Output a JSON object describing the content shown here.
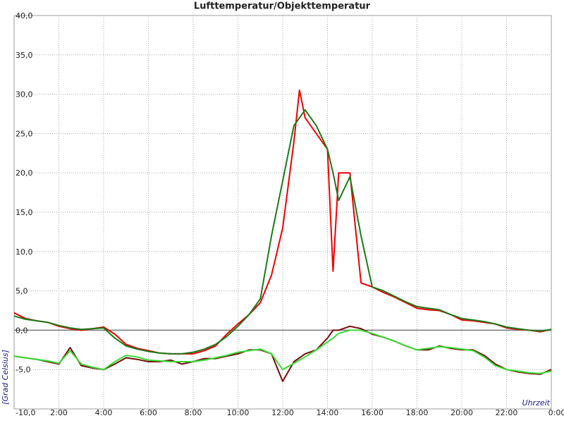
{
  "chart_data": {
    "type": "line",
    "title": "Lufttemperatur/Objekttemperatur",
    "ylabel": "[Grad Celsius]",
    "xlabel": "Uhrzeit",
    "x": [
      0,
      0.5,
      1,
      1.5,
      2,
      2.5,
      3,
      3.5,
      4,
      4.5,
      5,
      5.5,
      6,
      6.5,
      7,
      7.5,
      8,
      8.5,
      9,
      9.5,
      10,
      10.5,
      11,
      11.5,
      12,
      12.5,
      12.75,
      13,
      13.5,
      14,
      14.25,
      14.5,
      15,
      15.5,
      16,
      16.5,
      17,
      17.5,
      18,
      18.5,
      19,
      19.5,
      20,
      20.5,
      21,
      21.5,
      22,
      22.5,
      23,
      23.5,
      24
    ],
    "series": [
      {
        "color": "#ee0000",
        "values": [
          2.2,
          1.5,
          1.2,
          1.0,
          0.5,
          0.2,
          0.0,
          0.2,
          0.4,
          -0.5,
          -1.8,
          -2.3,
          -2.6,
          -2.9,
          -3.0,
          -3.0,
          -3.0,
          -2.6,
          -2.0,
          -0.5,
          0.8,
          2.0,
          3.5,
          7,
          13,
          24,
          30.5,
          27,
          25,
          23,
          7.5,
          20,
          20,
          6,
          5.5,
          4.8,
          4.2,
          3.5,
          2.8,
          2.6,
          2.5,
          2.0,
          1.3,
          1.2,
          1.0,
          0.8,
          0.3,
          0.1,
          0.0,
          -0.2,
          0.1
        ]
      },
      {
        "color": "#1a7a1a",
        "values": [
          1.8,
          1.4,
          1.2,
          1.0,
          0.6,
          0.3,
          0.1,
          0.2,
          0.3,
          -1.0,
          -2.0,
          -2.4,
          -2.7,
          -2.9,
          -3.0,
          -3.0,
          -2.8,
          -2.4,
          -1.8,
          -0.8,
          0.5,
          2.0,
          4.0,
          12,
          19,
          26,
          27,
          28,
          26,
          23,
          20,
          16.5,
          19.5,
          12,
          5.5,
          5,
          4.3,
          3.6,
          3.0,
          2.8,
          2.6,
          2.0,
          1.5,
          1.3,
          1.1,
          0.8,
          0.4,
          0.2,
          0.0,
          -0.1,
          0.1
        ]
      },
      {
        "color": "#7a0a0a",
        "values": [
          -3.3,
          -3.5,
          -3.7,
          -4.0,
          -4.3,
          -2.2,
          -4.5,
          -4.8,
          -5.0,
          -4.3,
          -3.5,
          -3.7,
          -4.0,
          -4.0,
          -3.8,
          -4.3,
          -4.0,
          -3.6,
          -3.6,
          -3.3,
          -3.0,
          -2.5,
          -2.5,
          -3.0,
          -6.5,
          -4.0,
          -3.5,
          -3.0,
          -2.5,
          -1.0,
          0.0,
          0.0,
          0.5,
          0.2,
          -0.5,
          -0.9,
          -1.4,
          -2.0,
          -2.5,
          -2.5,
          -2.0,
          -2.3,
          -2.5,
          -2.5,
          -3.2,
          -4.3,
          -5.0,
          -5.3,
          -5.5,
          -5.6,
          -5.0
        ]
      },
      {
        "color": "#33dd33",
        "values": [
          -3.3,
          -3.5,
          -3.7,
          -3.9,
          -4.2,
          -2.6,
          -4.3,
          -4.7,
          -5.0,
          -4.0,
          -3.2,
          -3.4,
          -3.8,
          -3.9,
          -4.0,
          -4.0,
          -4.0,
          -3.8,
          -3.5,
          -3.2,
          -2.8,
          -2.6,
          -2.4,
          -3.0,
          -5.0,
          -4.2,
          -3.8,
          -3.4,
          -2.5,
          -1.5,
          -1.0,
          -0.4,
          0.0,
          0.0,
          -0.4,
          -0.9,
          -1.4,
          -2.0,
          -2.5,
          -2.3,
          -2.1,
          -2.2,
          -2.4,
          -2.6,
          -3.4,
          -4.5,
          -5.0,
          -5.2,
          -5.4,
          -5.5,
          -5.2
        ]
      }
    ],
    "xlim": [
      0,
      24
    ],
    "xticks": [
      {
        "value": 2,
        "label": "2:00"
      },
      {
        "value": 4,
        "label": "4:00"
      },
      {
        "value": 6,
        "label": "6:00"
      },
      {
        "value": 8,
        "label": "8:00"
      },
      {
        "value": 10,
        "label": "10:00"
      },
      {
        "value": 12,
        "label": "12:00"
      },
      {
        "value": 14,
        "label": "14:00"
      },
      {
        "value": 16,
        "label": "16:00"
      },
      {
        "value": 18,
        "label": "18:00"
      },
      {
        "value": 20,
        "label": "20:00"
      },
      {
        "value": 22,
        "label": "22:00"
      },
      {
        "value": 24,
        "label": "0:00"
      }
    ],
    "ylim": [
      -10,
      40
    ],
    "yticks": [
      {
        "value": -10,
        "label": "-10,0"
      },
      {
        "value": -5,
        "label": "-5,0"
      },
      {
        "value": 0,
        "label": "0,0"
      },
      {
        "value": 5,
        "label": "5,0"
      },
      {
        "value": 10,
        "label": "10,0"
      },
      {
        "value": 15,
        "label": "15,0"
      },
      {
        "value": 20,
        "label": "20,0"
      },
      {
        "value": 25,
        "label": "25,0"
      },
      {
        "value": 30,
        "label": "30,0"
      },
      {
        "value": 35,
        "label": "35,0"
      },
      {
        "value": 40,
        "label": "40,0"
      }
    ],
    "grid": true
  }
}
